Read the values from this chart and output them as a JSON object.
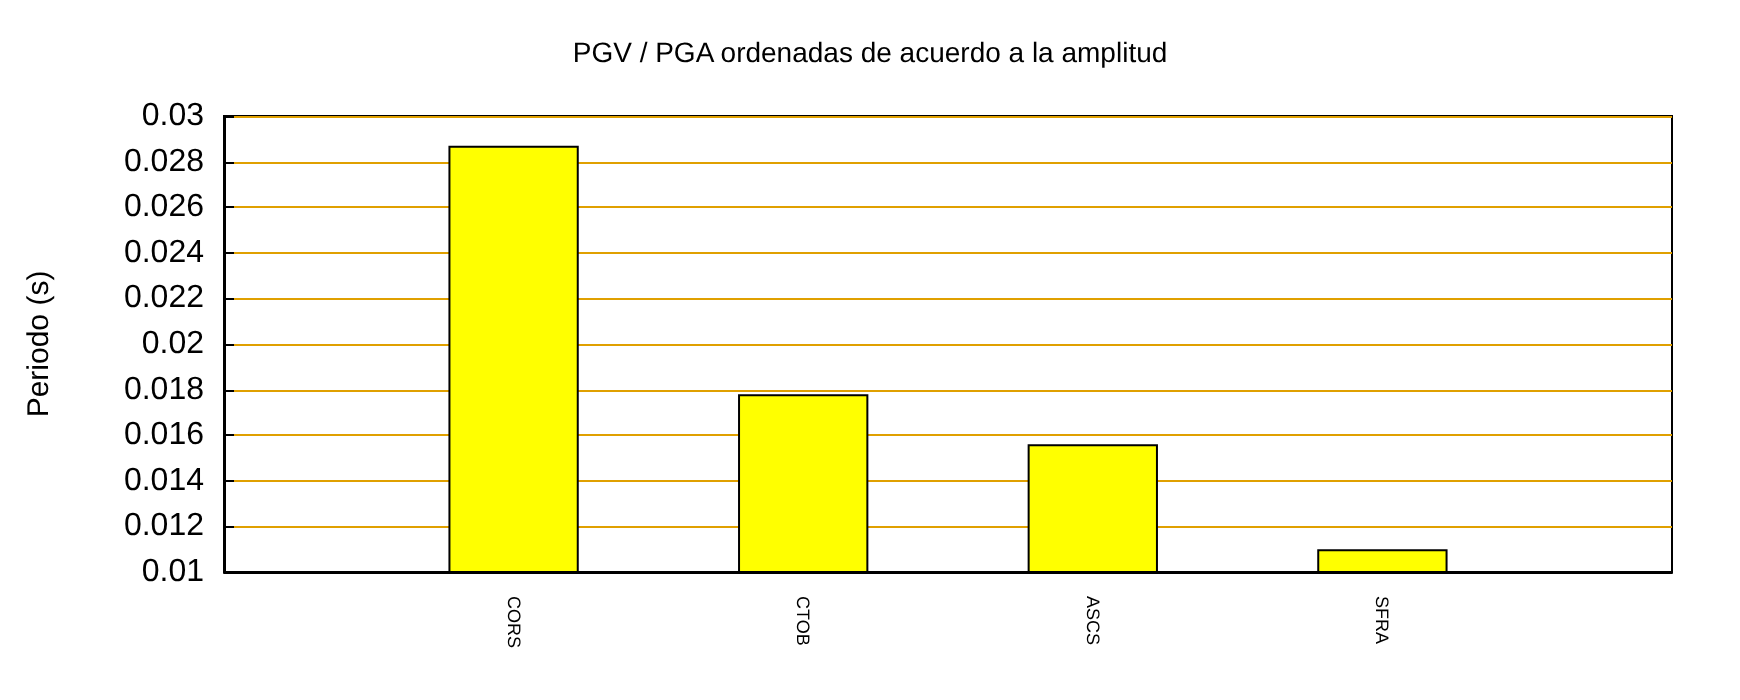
{
  "chart_data": {
    "type": "bar",
    "title": "PGV / PGA ordenadas de acuerdo a la amplitud",
    "ylabel": "Periodo (s)",
    "categories": [
      null,
      "CORS",
      "CTOB",
      "ASCS",
      "SFRA",
      null
    ],
    "values": [
      null,
      0.0287,
      0.0178,
      0.0156,
      0.011,
      null
    ],
    "color": "#ffff00",
    "ylim": [
      0.01,
      0.03
    ],
    "yticks": [
      0.01,
      0.012,
      0.014,
      0.016,
      0.018,
      0.02,
      0.022,
      0.024,
      0.026,
      0.028,
      0.03
    ],
    "grid": "y"
  }
}
